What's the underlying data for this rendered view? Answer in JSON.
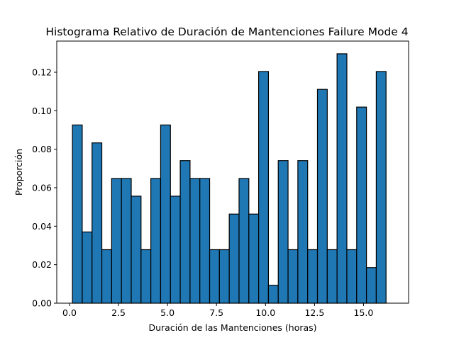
{
  "chart_data": {
    "type": "bar",
    "title": "Histograma Relativo de Duración de Mantenciones Failure Mode 4",
    "xlabel": "Duración de las Mantenciones (horas)",
    "ylabel": "Proporción",
    "xlim": [
      -0.65,
      17.3
    ],
    "ylim": [
      0.0,
      0.1362
    ],
    "xticks": [
      0.0,
      2.5,
      5.0,
      7.5,
      10.0,
      12.5,
      15.0
    ],
    "xtick_labels": [
      "0.0",
      "2.5",
      "5.0",
      "7.5",
      "10.0",
      "12.5",
      "15.0"
    ],
    "yticks": [
      0.0,
      0.02,
      0.04,
      0.06,
      0.08,
      0.1,
      0.12
    ],
    "ytick_labels": [
      "0.00",
      "0.02",
      "0.04",
      "0.06",
      "0.08",
      "0.10",
      "0.12"
    ],
    "grid": false,
    "legend": "none",
    "bin_start": 0.15,
    "bin_width": 0.5,
    "values": [
      0.0926,
      0.037,
      0.0833,
      0.0278,
      0.0648,
      0.0648,
      0.0556,
      0.0278,
      0.0648,
      0.0926,
      0.0556,
      0.0741,
      0.0648,
      0.0648,
      0.0278,
      0.0278,
      0.0463,
      0.0648,
      0.0463,
      0.1204,
      0.0093,
      0.0741,
      0.0278,
      0.0741,
      0.0278,
      0.1111,
      0.0278,
      0.1296,
      0.0278,
      0.1019,
      0.0185,
      0.1204
    ],
    "bar_color": "#1f77b4",
    "edge_color": "#000000"
  }
}
